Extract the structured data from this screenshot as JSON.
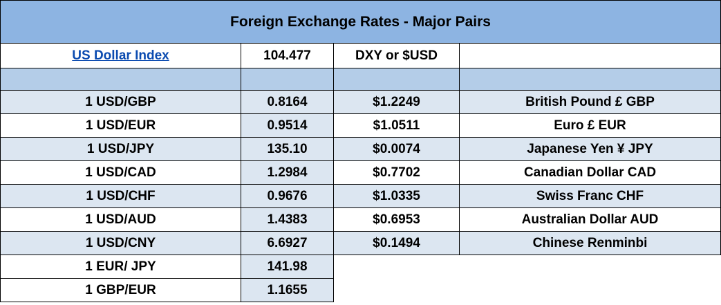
{
  "title": "Foreign Exchange Rates - Major Pairs",
  "index": {
    "label": "US Dollar Index",
    "value": "104.477",
    "note": "DXY or $USD"
  },
  "rows": [
    [
      "1 USD/GBP",
      "0.8164",
      "$1.2249",
      "British Pound £ GBP"
    ],
    [
      "1 USD/EUR",
      "0.9514",
      "$1.0511",
      "Euro £ EUR"
    ],
    [
      "1 USD/JPY",
      "135.10",
      "$0.0074",
      "Japanese Yen ¥ JPY"
    ],
    [
      "1 USD/CAD",
      "1.2984",
      "$0.7702",
      "Canadian Dollar CAD"
    ],
    [
      "1 USD/CHF",
      "0.9676",
      "$1.0335",
      "Swiss Franc CHF"
    ],
    [
      "1 USD/AUD",
      "1.4383",
      "$0.6953",
      "Australian Dollar AUD"
    ],
    [
      "1 USD/CNY",
      "6.6927",
      "$0.1494",
      "Chinese Renminbi"
    ]
  ],
  "cross_rows": [
    [
      "1 EUR/ JPY",
      "141.98"
    ],
    [
      "1 GBP/EUR",
      "1.1655"
    ]
  ]
}
